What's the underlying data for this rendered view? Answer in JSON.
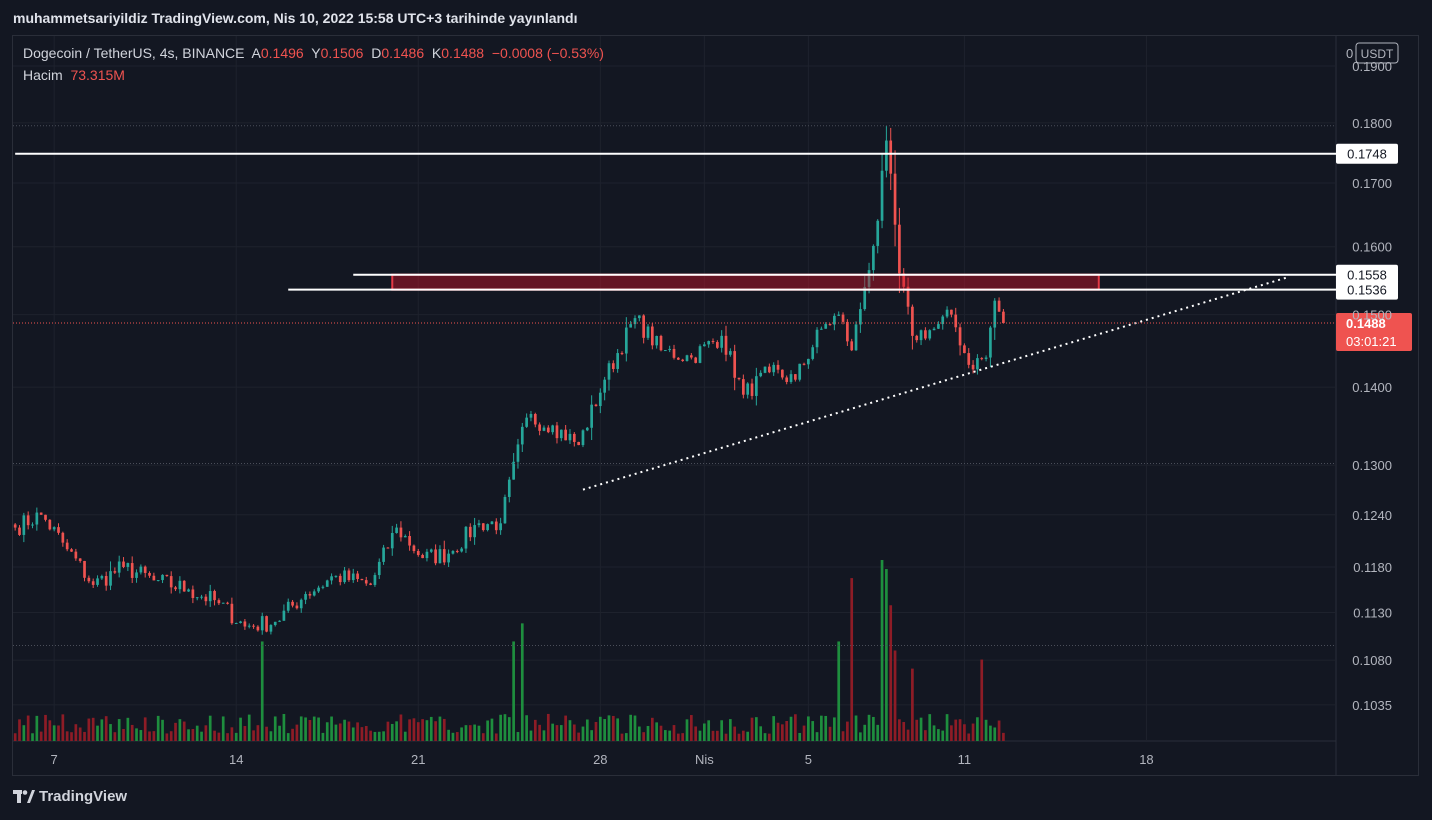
{
  "published_line": "muhammetsariyildiz TradingView.com, Nis 10, 2022 15:58 UTC+3 tarihinde yayınlandı",
  "header": {
    "symbol": "Dogecoin / TetherUS, 4s, BINANCE",
    "open_label": "A",
    "open_value": "0.1496",
    "high_label": "Y",
    "high_value": "0.1506",
    "low_label": "D",
    "low_value": "0.1486",
    "close_label": "K",
    "close_value": "0.1488",
    "change": "−0.0008 (−0.53%)",
    "volume_label": "Hacim",
    "volume_value": "73.315M"
  },
  "branding": "TradingView",
  "colors": {
    "up": "#26a69a",
    "down": "#ef5350",
    "vol_up": "#1e8e3e",
    "vol_down": "#8e1c26",
    "background": "#131722"
  },
  "chart_data": {
    "type": "candlestick",
    "price_axis_unit": "USDT",
    "price_axis_zero_label": "0",
    "price_axis_labels": [
      "0.1900",
      "0.1800",
      "0.1700",
      "0.1600",
      "0.1500",
      "0.1400",
      "0.1300",
      "0.1240",
      "0.1180",
      "0.1130",
      "0.1080",
      "0.1035"
    ],
    "price_scale": "log",
    "ylim": [
      0.1,
      0.1955
    ],
    "time_axis_labels": [
      {
        "label": "7",
        "index": 9
      },
      {
        "label": "14",
        "index": 51
      },
      {
        "label": "21",
        "index": 93
      },
      {
        "label": "28",
        "index": 135
      },
      {
        "label": "Nis",
        "index": 159
      },
      {
        "label": "5",
        "index": 183
      },
      {
        "label": "11",
        "index": 219
      },
      {
        "label": "18",
        "index": 261
      }
    ],
    "total_slots": 305,
    "candle_count": 229,
    "anchors": [
      {
        "i": 0,
        "p": 0.1225
      },
      {
        "i": 6,
        "p": 0.124
      },
      {
        "i": 12,
        "p": 0.12
      },
      {
        "i": 18,
        "p": 0.116
      },
      {
        "i": 25,
        "p": 0.118
      },
      {
        "i": 32,
        "p": 0.1165
      },
      {
        "i": 40,
        "p": 0.1155
      },
      {
        "i": 47,
        "p": 0.114
      },
      {
        "i": 53,
        "p": 0.1115
      },
      {
        "i": 60,
        "p": 0.112
      },
      {
        "i": 67,
        "p": 0.115
      },
      {
        "i": 74,
        "p": 0.117
      },
      {
        "i": 82,
        "p": 0.116
      },
      {
        "i": 88,
        "p": 0.1225
      },
      {
        "i": 94,
        "p": 0.119
      },
      {
        "i": 100,
        "p": 0.1195
      },
      {
        "i": 107,
        "p": 0.123
      },
      {
        "i": 112,
        "p": 0.123
      },
      {
        "i": 118,
        "p": 0.136
      },
      {
        "i": 124,
        "p": 0.135
      },
      {
        "i": 130,
        "p": 0.1325
      },
      {
        "i": 136,
        "p": 0.141
      },
      {
        "i": 143,
        "p": 0.1495
      },
      {
        "i": 149,
        "p": 0.145
      },
      {
        "i": 156,
        "p": 0.144
      },
      {
        "i": 163,
        "p": 0.147
      },
      {
        "i": 168,
        "p": 0.139
      },
      {
        "i": 174,
        "p": 0.142
      },
      {
        "i": 180,
        "p": 0.141
      },
      {
        "i": 186,
        "p": 0.148
      },
      {
        "i": 190,
        "p": 0.15
      },
      {
        "i": 193,
        "p": 0.145
      },
      {
        "i": 196,
        "p": 0.154
      },
      {
        "i": 199,
        "p": 0.164
      },
      {
        "i": 201,
        "p": 0.177
      },
      {
        "i": 204,
        "p": 0.156
      },
      {
        "i": 207,
        "p": 0.147
      },
      {
        "i": 212,
        "p": 0.148
      },
      {
        "i": 216,
        "p": 0.15
      },
      {
        "i": 220,
        "p": 0.143
      },
      {
        "i": 224,
        "p": 0.144
      },
      {
        "i": 226,
        "p": 0.152
      },
      {
        "i": 228,
        "p": 0.1488
      }
    ],
    "volume_spikes": [
      {
        "i": 57,
        "v": 0.55
      },
      {
        "i": 115,
        "v": 0.55
      },
      {
        "i": 117,
        "v": 0.65
      },
      {
        "i": 190,
        "v": 0.55
      },
      {
        "i": 193,
        "v": 0.9
      },
      {
        "i": 200,
        "v": 1.0
      },
      {
        "i": 201,
        "v": 0.95
      },
      {
        "i": 202,
        "v": 0.75
      },
      {
        "i": 203,
        "v": 0.5
      },
      {
        "i": 207,
        "v": 0.4
      },
      {
        "i": 223,
        "v": 0.45
      }
    ],
    "horizontal_lines": [
      {
        "price": 0.1748,
        "label": "0.1748",
        "from_index": 0
      },
      {
        "price": 0.1558,
        "label": "0.1558",
        "from_index": 78
      },
      {
        "price": 0.1536,
        "label": "0.1536",
        "from_index": 63
      }
    ],
    "resistance_zone": {
      "from_index": 87,
      "to_index": 250,
      "price_top": 0.1558,
      "price_bottom": 0.1536
    },
    "trendline": {
      "from_index": 131,
      "from_price": 0.127,
      "to_index": 294,
      "to_price": 0.1555
    },
    "last_price": {
      "label": "0.1488",
      "countdown": "03:01:21"
    }
  }
}
